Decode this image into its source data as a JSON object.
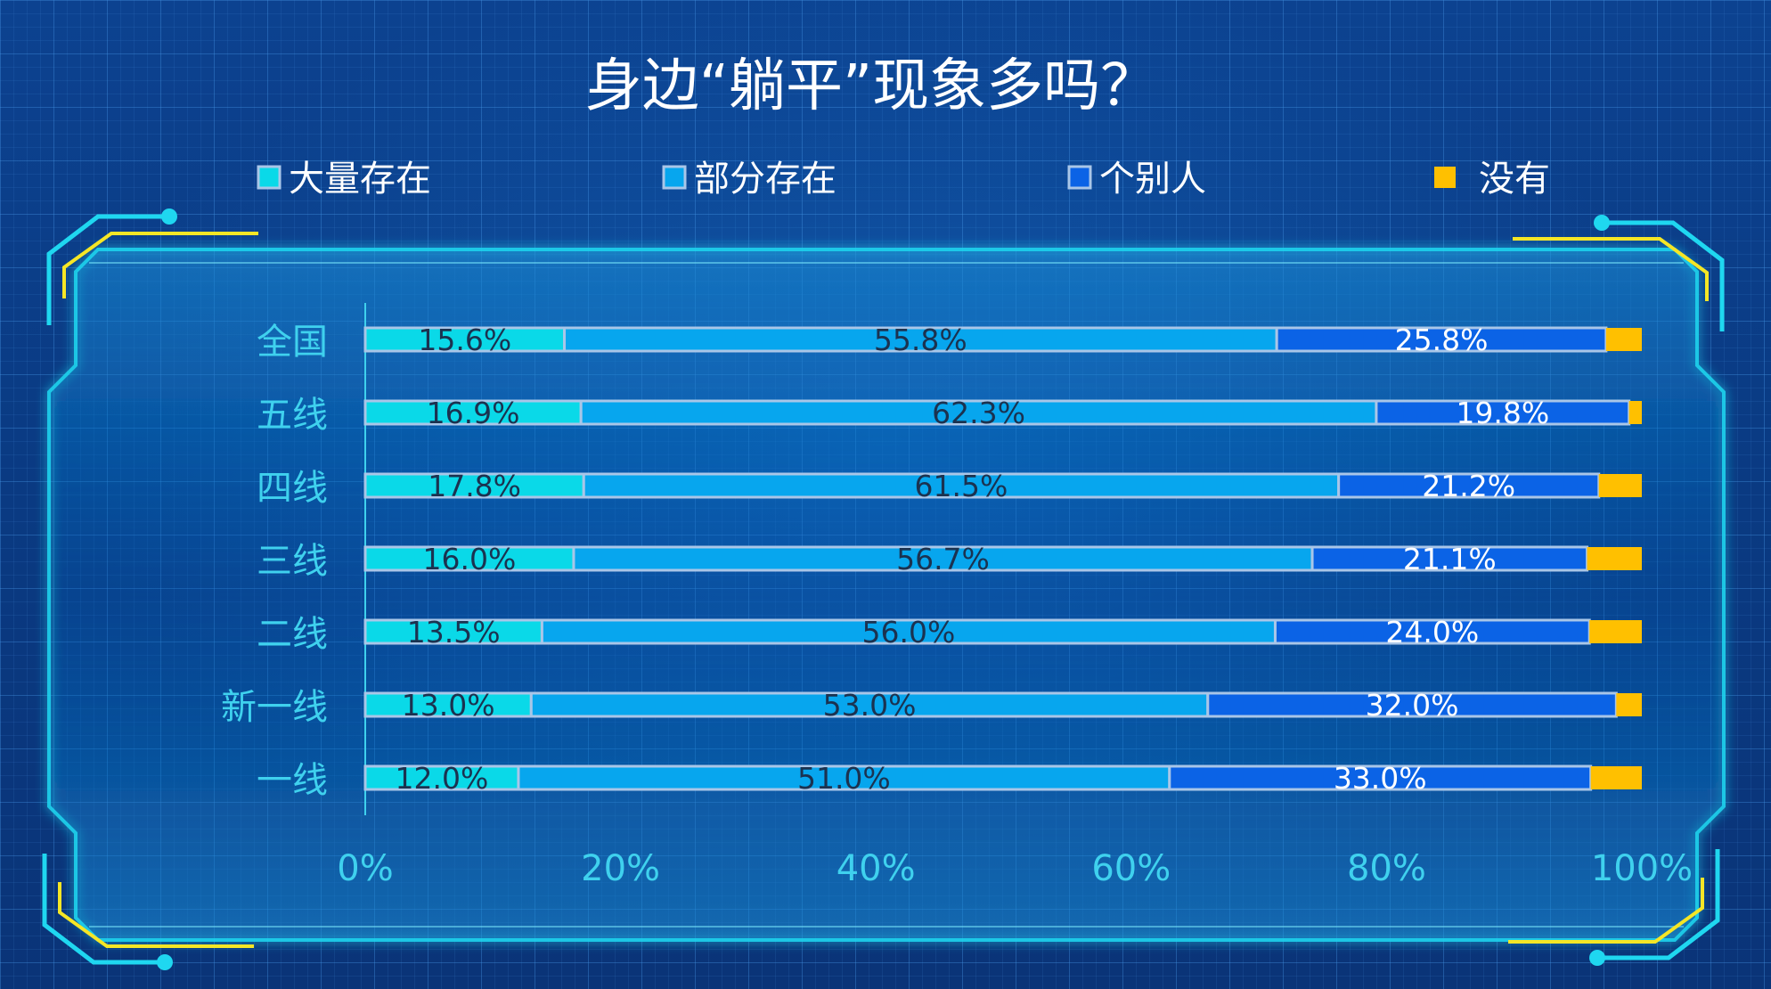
{
  "chart_data": {
    "type": "bar",
    "orientation": "horizontal",
    "stacked": "percent",
    "title": "身边“躺平”现象多吗？",
    "categories": [
      "全国",
      "五线",
      "四线",
      "三线",
      "二线",
      "新一线",
      "一线"
    ],
    "series": [
      {
        "name": "大量存在",
        "color": "#0ad9e8",
        "values": [
          15.6,
          16.9,
          17.8,
          16.0,
          13.5,
          13.0,
          12.0
        ],
        "labels": [
          "15.6%",
          "16.9%",
          "17.8%",
          "16.0%",
          "13.5%",
          "13.0%",
          "12.0%"
        ]
      },
      {
        "name": "部分存在",
        "color": "#07a6ee",
        "values": [
          55.8,
          62.3,
          61.5,
          56.7,
          56.0,
          53.0,
          51.0
        ],
        "labels": [
          "55.8%",
          "62.3%",
          "61.5%",
          "56.7%",
          "56.0%",
          "53.0%",
          "51.0%"
        ]
      },
      {
        "name": "个别人",
        "color": "#0b63e6",
        "values": [
          25.8,
          19.8,
          21.2,
          21.1,
          24.0,
          32.0,
          33.0
        ],
        "labels": [
          "25.8%",
          "19.8%",
          "21.2%",
          "21.1%",
          "24.0%",
          "32.0%",
          "33.0%"
        ]
      },
      {
        "name": "没有",
        "color": "#ffc000",
        "values": [
          2.8,
          1.0,
          3.5,
          4.2,
          4.0,
          2.0,
          4.0
        ],
        "labels": []
      }
    ],
    "x_ticks": [
      "0%",
      "20%",
      "40%",
      "60%",
      "80%",
      "100%"
    ],
    "xlim": [
      0,
      100
    ],
    "legend_position": "top",
    "grid": false
  },
  "colors": {
    "frame": "#1fd7f0",
    "accent_yellow": "#f5e626",
    "tick": "#3fd1ee"
  }
}
